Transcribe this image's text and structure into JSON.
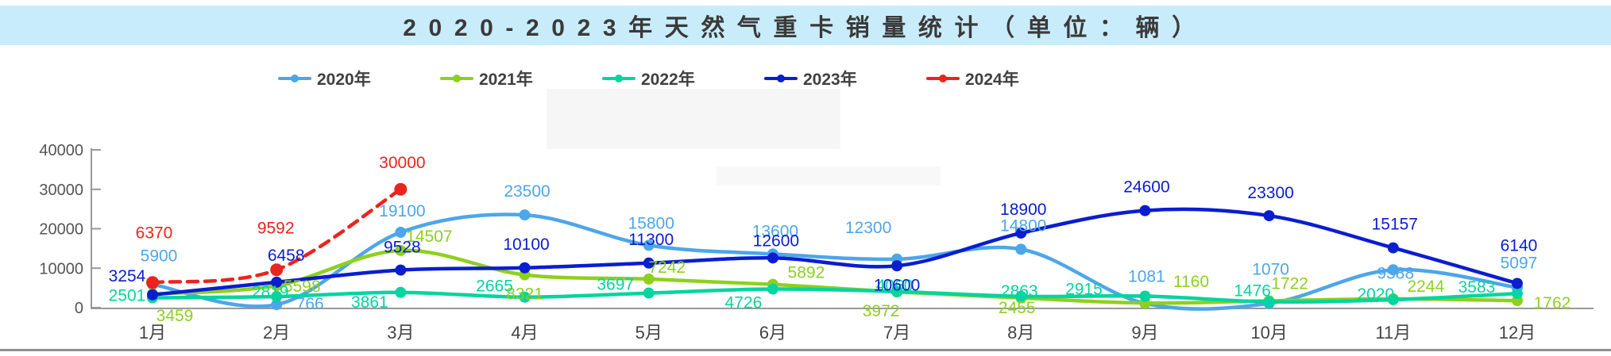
{
  "title": "2020-2023年天然气重卡销量统计（单位：辆）",
  "legend": [
    {
      "label": "2020年",
      "color": "#4da6ea"
    },
    {
      "label": "2021年",
      "color": "#8ed01e"
    },
    {
      "label": "2022年",
      "color": "#04d4a0"
    },
    {
      "label": "2023年",
      "color": "#0a1dd0"
    },
    {
      "label": "2024年",
      "color": "#ea241e"
    }
  ],
  "chart_data": {
    "type": "line",
    "title": "2020-2023年天然气重卡销量统计（单位：辆）",
    "categories": [
      "1月",
      "2月",
      "3月",
      "4月",
      "5月",
      "6月",
      "7月",
      "8月",
      "9月",
      "10月",
      "11月",
      "12月"
    ],
    "series": [
      {
        "name": "2020年",
        "color": "#4da6ea",
        "dashed": false,
        "values": [
          5900,
          766,
          19100,
          23500,
          15800,
          13600,
          12300,
          14800,
          1081,
          1070,
          9588,
          5097
        ]
      },
      {
        "name": "2021年",
        "color": "#8ed01e",
        "dashed": false,
        "values": [
          3459,
          5598,
          14507,
          8321,
          7242,
          5892,
          3972,
          2455,
          1160,
          1722,
          2244,
          1762
        ]
      },
      {
        "name": "2022年",
        "color": "#04d4a0",
        "dashed": false,
        "values": [
          2501,
          2819,
          3861,
          2665,
          3697,
          4726,
          4060,
          2863,
          2915,
          1476,
          2020,
          3583
        ]
      },
      {
        "name": "2023年",
        "color": "#0a1dd0",
        "dashed": false,
        "values": [
          3254,
          6458,
          9528,
          10100,
          11300,
          12600,
          10600,
          18900,
          24600,
          23300,
          15157,
          6140
        ]
      },
      {
        "name": "2024年",
        "color": "#ea241e",
        "dashed": true,
        "values": [
          6370,
          9592,
          30000,
          null,
          null,
          null,
          null,
          null,
          null,
          null,
          null,
          null
        ]
      }
    ],
    "ylim": [
      0,
      40000
    ],
    "yticks": [
      0,
      10000,
      20000,
      30000,
      40000
    ],
    "ytick_labels": [
      "0",
      "10000",
      "20000",
      "30000",
      "40000"
    ],
    "grid": false,
    "legend_position": "top",
    "axis_color": "#999999",
    "ytick_label_color": "#555555",
    "xtick_label_color": "#444444"
  }
}
